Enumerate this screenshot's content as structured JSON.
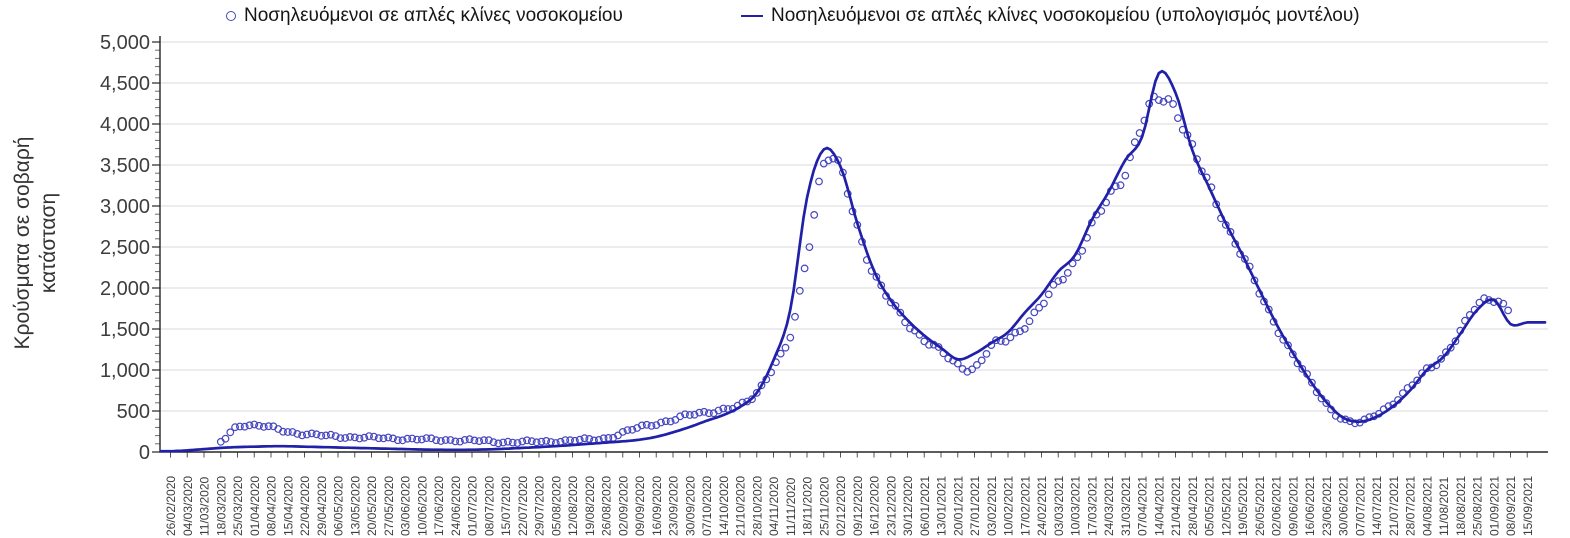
{
  "y_axis": {
    "title_line1": "Κρούσματα σε σοβαρή",
    "title_line2": "κατάσταση",
    "tick_labels": [
      "0",
      "500",
      "1,000",
      "1,500",
      "2,000",
      "2,500",
      "3,000",
      "3,500",
      "4,000",
      "4,500",
      "5,000"
    ]
  },
  "chart_data": {
    "type": "line",
    "title": "",
    "xlabel": "",
    "ylabel": "Κρούσματα σε σοβαρή κατάσταση",
    "ylim": [
      0,
      5000
    ],
    "y_major_step": 500,
    "y_minor_step": 100,
    "grid": true,
    "legend_position": "top",
    "x_tick_labels": [
      "26/02/2020",
      "04/03/2020",
      "11/03/2020",
      "18/03/2020",
      "25/03/2020",
      "01/04/2020",
      "08/04/2020",
      "15/04/2020",
      "22/04/2020",
      "29/04/2020",
      "06/05/2020",
      "13/05/2020",
      "20/05/2020",
      "27/05/2020",
      "03/06/2020",
      "10/06/2020",
      "17/06/2020",
      "24/06/2020",
      "01/07/2020",
      "08/07/2020",
      "15/07/2020",
      "22/07/2020",
      "29/07/2020",
      "05/08/2020",
      "12/08/2020",
      "19/08/2020",
      "26/08/2020",
      "02/09/2020",
      "09/09/2020",
      "16/09/2020",
      "23/09/2020",
      "30/09/2020",
      "07/10/2020",
      "14/10/2020",
      "21/10/2020",
      "28/10/2020",
      "04/11/2020",
      "11/11/2020",
      "18/11/2020",
      "25/11/2020",
      "02/12/2020",
      "09/12/2020",
      "16/12/2020",
      "23/12/2020",
      "30/12/2020",
      "06/01/2021",
      "13/01/2021",
      "20/01/2021",
      "27/01/2021",
      "03/02/2021",
      "10/02/2021",
      "17/02/2021",
      "24/02/2021",
      "03/03/2021",
      "10/03/2021",
      "17/03/2021",
      "24/03/2021",
      "31/03/2021",
      "07/04/2021",
      "14/04/2021",
      "21/04/2021",
      "28/04/2021",
      "05/05/2021",
      "12/05/2021",
      "19/05/2021",
      "26/05/2021",
      "02/06/2021",
      "09/06/2021",
      "16/06/2021",
      "23/06/2021",
      "30/06/2021",
      "07/07/2021",
      "14/07/2021",
      "21/07/2021",
      "28/07/2021",
      "04/08/2021",
      "11/08/2021",
      "18/08/2021",
      "25/08/2021",
      "01/09/2021",
      "08/09/2021",
      "15/09/2021"
    ],
    "series": [
      {
        "name": "Νοσηλευόμενοι σε απλές κλίνες νοσοκομείου",
        "type": "scatter",
        "marker": "open-circle",
        "color": "#4646C0",
        "cadence": "daily points, digitized at weekly anchors",
        "weekly_values": [
          null,
          null,
          null,
          120,
          315,
          325,
          295,
          250,
          220,
          200,
          190,
          180,
          172,
          168,
          160,
          152,
          148,
          145,
          138,
          130,
          122,
          120,
          125,
          132,
          140,
          150,
          170,
          230,
          300,
          350,
          390,
          450,
          490,
          515,
          560,
          730,
          1050,
          1400,
          2400,
          3520,
          3420,
          2750,
          2180,
          1820,
          1570,
          1380,
          1220,
          1060,
          1030,
          1280,
          1380,
          1550,
          1780,
          2070,
          2340,
          2740,
          3090,
          3440,
          3990,
          4300,
          4200,
          3700,
          3230,
          2790,
          2400,
          1940,
          1550,
          1190,
          870,
          590,
          400,
          355,
          470,
          600,
          780,
          1010,
          1170,
          1450,
          1800,
          1880,
          1690,
          null
        ]
      },
      {
        "name": "Νοσηλευόμενοι σε απλές κλίνες νοσοκομείου (υπολογισμός μοντέλου)",
        "type": "line",
        "marker": "none",
        "color": "#2020A8",
        "weekly_values": [
          10,
          20,
          35,
          50,
          60,
          65,
          70,
          70,
          65,
          60,
          55,
          50,
          45,
          40,
          35,
          30,
          28,
          27,
          28,
          32,
          40,
          50,
          60,
          72,
          85,
          100,
          115,
          130,
          150,
          185,
          240,
          305,
          380,
          450,
          550,
          720,
          1120,
          1730,
          3100,
          3690,
          3480,
          2790,
          2210,
          1850,
          1610,
          1420,
          1270,
          1130,
          1200,
          1330,
          1460,
          1700,
          1920,
          2200,
          2400,
          2830,
          3170,
          3560,
          3840,
          4620,
          4380,
          3680,
          3230,
          2790,
          2400,
          1980,
          1570,
          1210,
          880,
          610,
          420,
          370,
          430,
          560,
          750,
          1000,
          1160,
          1440,
          1730,
          1855,
          1560,
          1580
        ]
      }
    ]
  },
  "colors": {
    "gridline": "#DADADA",
    "axis": "#262626",
    "tick_text": "#3d3d3d",
    "scatter_stroke": "#4646C0",
    "model_line": "#2020A8"
  }
}
